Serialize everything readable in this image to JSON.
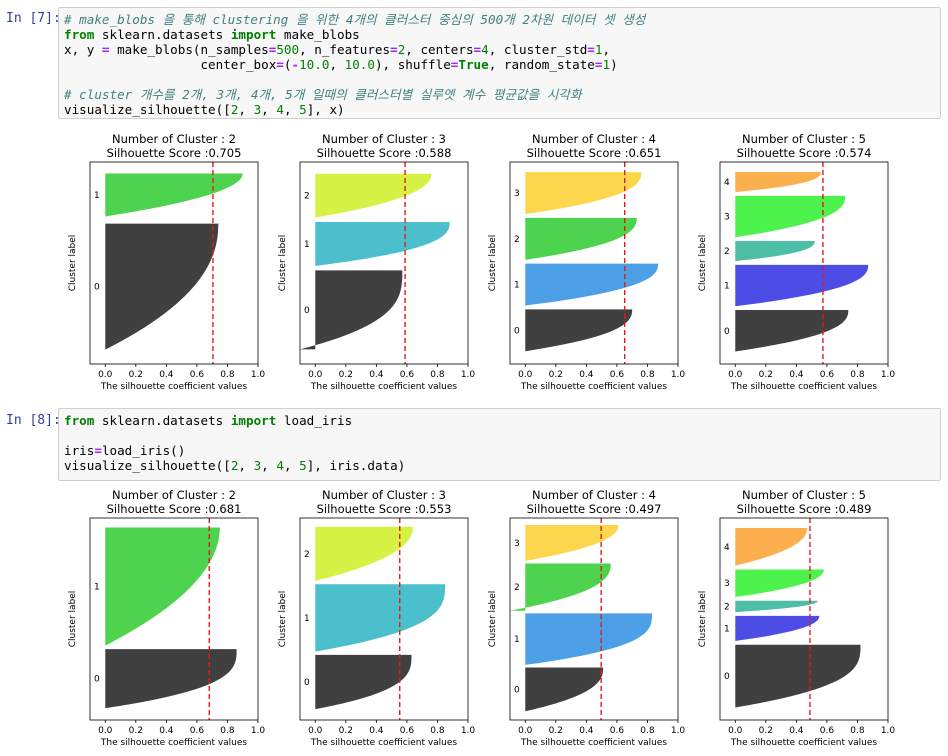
{
  "cells": [
    {
      "prompt": "In [7]:",
      "code": [
        [
          {
            "c": "cm",
            "t": "# make_blobs 을 통해 clustering 을 위한 4개의 클러스터 중심의 500개 2차원 데이터 셋 생성"
          }
        ],
        [
          {
            "c": "kw",
            "t": "from"
          },
          {
            "t": " sklearn.datasets "
          },
          {
            "c": "kw",
            "t": "import"
          },
          {
            "t": " make_blobs"
          }
        ],
        [
          {
            "t": "x, y "
          },
          {
            "c": "op",
            "t": "="
          },
          {
            "t": " make_blobs(n_samples"
          },
          {
            "c": "op",
            "t": "="
          },
          {
            "c": "num",
            "t": "500"
          },
          {
            "t": ", n_features"
          },
          {
            "c": "op",
            "t": "="
          },
          {
            "c": "num",
            "t": "2"
          },
          {
            "t": ", centers"
          },
          {
            "c": "op",
            "t": "="
          },
          {
            "c": "num",
            "t": "4"
          },
          {
            "t": ", cluster_std"
          },
          {
            "c": "op",
            "t": "="
          },
          {
            "c": "num",
            "t": "1"
          },
          {
            "t": ","
          }
        ],
        [
          {
            "t": "                  center_box"
          },
          {
            "c": "op",
            "t": "="
          },
          {
            "t": "("
          },
          {
            "c": "op",
            "t": "-"
          },
          {
            "c": "num",
            "t": "10.0"
          },
          {
            "t": ", "
          },
          {
            "c": "num",
            "t": "10.0"
          },
          {
            "t": "), shuffle"
          },
          {
            "c": "op",
            "t": "="
          },
          {
            "c": "kw",
            "t": "True"
          },
          {
            "t": ", random_state"
          },
          {
            "c": "op",
            "t": "="
          },
          {
            "c": "num",
            "t": "1"
          },
          {
            "t": ")"
          }
        ],
        [],
        [
          {
            "c": "cm",
            "t": "# cluster 개수를 2개, 3개, 4개, 5개 일때의 클러스터별 실루엣 계수 평균값을 시각화"
          }
        ],
        [
          {
            "t": "visualize_silhouette(["
          },
          {
            "c": "num",
            "t": "2"
          },
          {
            "t": ", "
          },
          {
            "c": "num",
            "t": "3"
          },
          {
            "t": ", "
          },
          {
            "c": "num",
            "t": "4"
          },
          {
            "t": ", "
          },
          {
            "c": "num",
            "t": "5"
          },
          {
            "t": "], x)"
          }
        ]
      ]
    },
    {
      "prompt": "In [8]:",
      "code": [
        [
          {
            "c": "kw",
            "t": "from"
          },
          {
            "t": " sklearn.datasets "
          },
          {
            "c": "kw",
            "t": "import"
          },
          {
            "t": " load_iris"
          }
        ],
        [],
        [
          {
            "t": "iris"
          },
          {
            "c": "op",
            "t": "="
          },
          {
            "t": "load_iris()"
          }
        ],
        [
          {
            "t": "visualize_silhouette(["
          },
          {
            "c": "num",
            "t": "2"
          },
          {
            "t": ", "
          },
          {
            "c": "num",
            "t": "3"
          },
          {
            "t": ", "
          },
          {
            "c": "num",
            "t": "4"
          },
          {
            "t": ", "
          },
          {
            "c": "num",
            "t": "5"
          },
          {
            "t": "], iris.data)"
          }
        ]
      ]
    }
  ],
  "chart_data": [
    {
      "type": "silhouette",
      "title": "Number of Cluster : 2",
      "subtitle": "Silhouette Score :0.705",
      "score": 0.705,
      "xlabel": "The silhouette coefficient values",
      "ylabel": "Cluster label",
      "xticks": [
        "0.0",
        "0.2",
        "0.4",
        "0.6",
        "0.8",
        "1.0"
      ],
      "xlim": [
        -0.1,
        1.0
      ],
      "clusters": [
        {
          "label": "0",
          "color": "#404040",
          "start": 0.1,
          "end": 0.98,
          "max": 0.74,
          "min": 0.0,
          "curve": 2.2
        },
        {
          "label": "1",
          "color": "#4dd34d",
          "start": 1.03,
          "end": 1.33,
          "max": 0.9,
          "min": 0.0,
          "curve": 2.0
        }
      ]
    },
    {
      "type": "silhouette",
      "title": "Number of Cluster : 3",
      "subtitle": "Silhouette Score :0.588",
      "score": 0.588,
      "xlabel": "The silhouette coefficient values",
      "ylabel": "Cluster label",
      "xticks": [
        "0.0",
        "0.2",
        "0.4",
        "0.6",
        "0.8",
        "1.0"
      ],
      "xlim": [
        -0.1,
        1.0
      ],
      "clusters": [
        {
          "label": "0",
          "color": "#404040",
          "start": 0.1,
          "end": 0.64,
          "max": 0.57,
          "min": -0.1,
          "curve": 3.0
        },
        {
          "label": "1",
          "color": "#4bbfcc",
          "start": 0.67,
          "end": 0.97,
          "max": 0.88,
          "min": 0.0,
          "curve": 2.6
        },
        {
          "label": "2",
          "color": "#d6f244",
          "start": 1.0,
          "end": 1.3,
          "max": 0.76,
          "min": 0.0,
          "curve": 2.2
        }
      ]
    },
    {
      "type": "silhouette",
      "title": "Number of Cluster : 4",
      "subtitle": "Silhouette Score :0.651",
      "score": 0.651,
      "xlabel": "The silhouette coefficient values",
      "ylabel": "Cluster label",
      "xticks": [
        "0.0",
        "0.2",
        "0.4",
        "0.6",
        "0.8",
        "1.0"
      ],
      "xlim": [
        -0.1,
        1.0
      ],
      "clusters": [
        {
          "label": "0",
          "color": "#404040",
          "start": 0.1,
          "end": 0.43,
          "max": 0.7,
          "min": 0.0,
          "curve": 2.5
        },
        {
          "label": "1",
          "color": "#4da0e6",
          "start": 0.46,
          "end": 0.79,
          "max": 0.87,
          "min": 0.0,
          "curve": 2.5
        },
        {
          "label": "2",
          "color": "#4dd34d",
          "start": 0.82,
          "end": 1.15,
          "max": 0.73,
          "min": 0.0,
          "curve": 2.5
        },
        {
          "label": "3",
          "color": "#fcd74d",
          "start": 1.18,
          "end": 1.51,
          "max": 0.76,
          "min": 0.0,
          "curve": 2.5
        }
      ]
    },
    {
      "type": "silhouette",
      "title": "Number of Cluster : 5",
      "subtitle": "Silhouette Score :0.574",
      "score": 0.574,
      "xlabel": "The silhouette coefficient values",
      "ylabel": "Cluster label",
      "xticks": [
        "0.0",
        "0.2",
        "0.4",
        "0.6",
        "0.8",
        "1.0"
      ],
      "xlim": [
        -0.1,
        1.0
      ],
      "clusters": [
        {
          "label": "0",
          "color": "#404040",
          "start": 0.1,
          "end": 0.43,
          "max": 0.74,
          "min": 0.0,
          "curve": 2.5
        },
        {
          "label": "1",
          "color": "#4d4de6",
          "start": 0.46,
          "end": 0.79,
          "max": 0.87,
          "min": 0.0,
          "curve": 2.5
        },
        {
          "label": "2",
          "color": "#4dbfa6",
          "start": 0.82,
          "end": 0.98,
          "max": 0.52,
          "min": 0.0,
          "curve": 2.5
        },
        {
          "label": "3",
          "color": "#4df24d",
          "start": 1.01,
          "end": 1.34,
          "max": 0.72,
          "min": 0.0,
          "curve": 2.5
        },
        {
          "label": "4",
          "color": "#fcb04d",
          "start": 1.37,
          "end": 1.53,
          "max": 0.56,
          "min": 0.0,
          "curve": 2.5
        }
      ]
    },
    {
      "type": "silhouette",
      "title": "Number of Cluster : 2",
      "subtitle": "Silhouette Score :0.681",
      "score": 0.681,
      "xlabel": "The silhouette coefficient values",
      "ylabel": "Cluster label",
      "xticks": [
        "0.0",
        "0.2",
        "0.4",
        "0.6",
        "0.8",
        "1.0"
      ],
      "xlim": [
        -0.1,
        1.0
      ],
      "clusters": [
        {
          "label": "0",
          "color": "#404040",
          "start": 0.1,
          "end": 0.6,
          "max": 0.86,
          "min": 0.0,
          "curve": 3.0
        },
        {
          "label": "1",
          "color": "#4dd34d",
          "start": 0.63,
          "end": 1.63,
          "max": 0.75,
          "min": 0.0,
          "curve": 2.0
        }
      ]
    },
    {
      "type": "silhouette",
      "title": "Number of Cluster : 3",
      "subtitle": "Silhouette Score :0.553",
      "score": 0.553,
      "xlabel": "The silhouette coefficient values",
      "ylabel": "Cluster label",
      "xticks": [
        "0.0",
        "0.2",
        "0.4",
        "0.6",
        "0.8",
        "1.0"
      ],
      "xlim": [
        -0.1,
        1.0
      ],
      "clusters": [
        {
          "label": "0",
          "color": "#404040",
          "start": 0.1,
          "end": 0.6,
          "max": 0.63,
          "min": 0.0,
          "curve": 3.0
        },
        {
          "label": "1",
          "color": "#4bbfcc",
          "start": 0.63,
          "end": 1.25,
          "max": 0.85,
          "min": 0.0,
          "curve": 3.0
        },
        {
          "label": "2",
          "color": "#d6f244",
          "start": 1.28,
          "end": 1.78,
          "max": 0.64,
          "min": 0.0,
          "curve": 2.2
        }
      ]
    },
    {
      "type": "silhouette",
      "title": "Number of Cluster : 4",
      "subtitle": "Silhouette Score :0.497",
      "score": 0.497,
      "xlabel": "The silhouette coefficient values",
      "ylabel": "Cluster label",
      "xticks": [
        "0.0",
        "0.2",
        "0.4",
        "0.6",
        "0.8",
        "1.0"
      ],
      "xlim": [
        -0.1,
        1.0
      ],
      "clusters": [
        {
          "label": "0",
          "color": "#404040",
          "start": 0.1,
          "end": 0.6,
          "max": 0.51,
          "min": 0.0,
          "curve": 2.5
        },
        {
          "label": "1",
          "color": "#4da0e6",
          "start": 0.63,
          "end": 1.22,
          "max": 0.83,
          "min": 0.0,
          "curve": 3.0
        },
        {
          "label": "2",
          "color": "#4dd34d",
          "start": 1.25,
          "end": 1.79,
          "max": 0.56,
          "min": -0.1,
          "curve": 2.5
        },
        {
          "label": "3",
          "color": "#fcd74d",
          "start": 1.82,
          "end": 2.23,
          "max": 0.61,
          "min": 0.0,
          "curve": 2.2
        }
      ]
    },
    {
      "type": "silhouette",
      "title": "Number of Cluster : 5",
      "subtitle": "Silhouette Score :0.489",
      "score": 0.489,
      "xlabel": "The silhouette coefficient values",
      "ylabel": "Cluster label",
      "xticks": [
        "0.0",
        "0.2",
        "0.4",
        "0.6",
        "0.8",
        "1.0"
      ],
      "xlim": [
        -0.1,
        1.0
      ],
      "clusters": [
        {
          "label": "0",
          "color": "#404040",
          "start": 0.1,
          "end": 0.6,
          "max": 0.82,
          "min": 0.0,
          "curve": 3.0
        },
        {
          "label": "1",
          "color": "#4d4de6",
          "start": 0.63,
          "end": 0.83,
          "max": 0.55,
          "min": 0.0,
          "curve": 2.2
        },
        {
          "label": "2",
          "color": "#4dbfa6",
          "start": 0.86,
          "end": 0.95,
          "max": 0.54,
          "min": 0.0,
          "curve": 2.2
        },
        {
          "label": "3",
          "color": "#4df24d",
          "start": 0.98,
          "end": 1.2,
          "max": 0.58,
          "min": 0.0,
          "curve": 2.2
        },
        {
          "label": "4",
          "color": "#fcb04d",
          "start": 1.23,
          "end": 1.53,
          "max": 0.47,
          "min": 0.0,
          "curve": 2.2
        }
      ]
    }
  ]
}
